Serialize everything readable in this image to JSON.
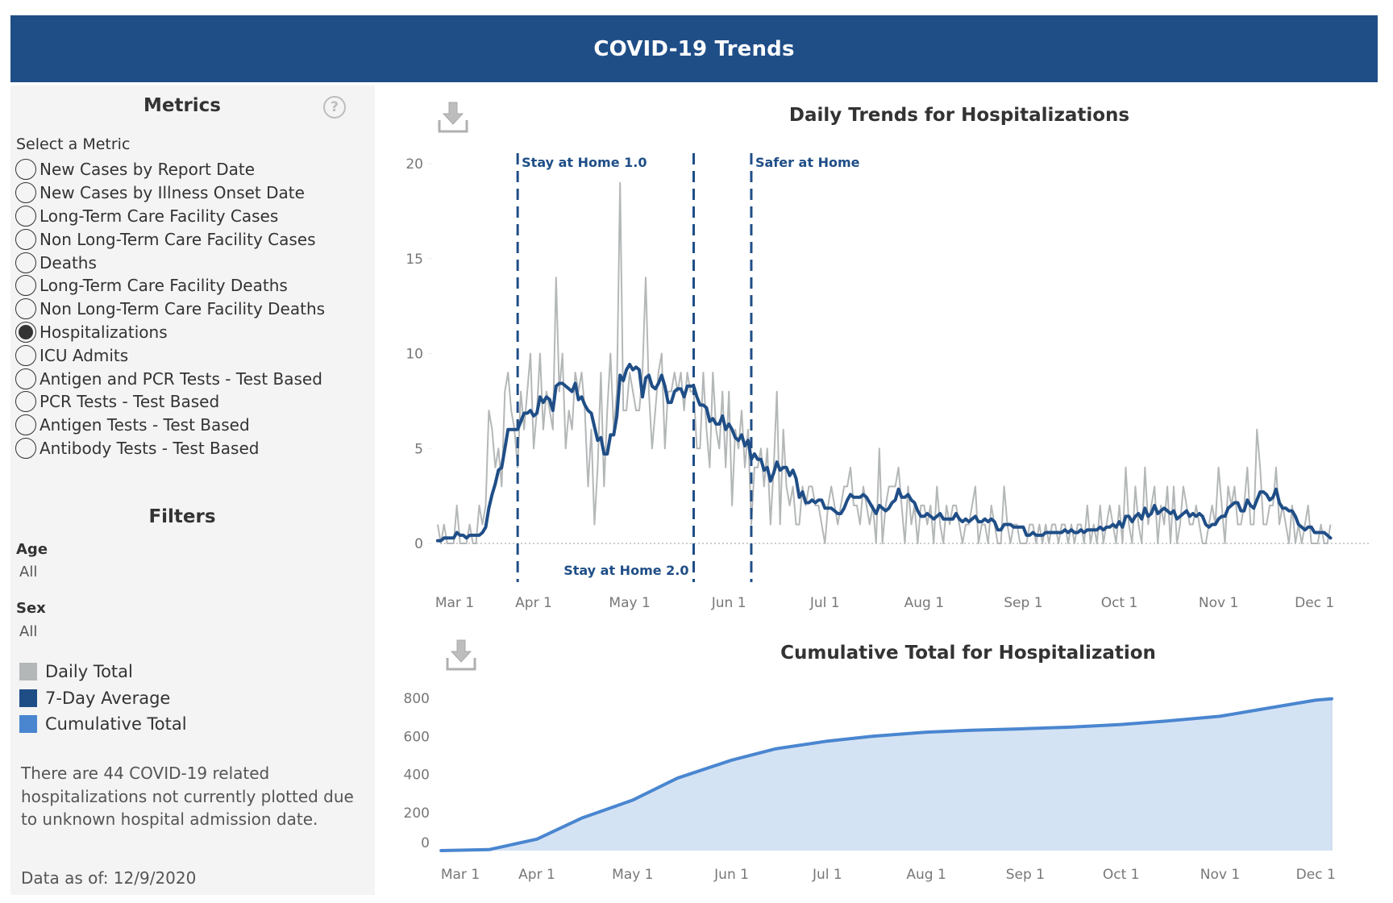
{
  "header": {
    "title": "COVID-19 Trends"
  },
  "sidebar": {
    "metrics_heading": "Metrics",
    "help_icon": "question-circle-icon",
    "select_label": "Select a Metric",
    "metrics": [
      {
        "label": "New Cases by Report Date",
        "selected": false
      },
      {
        "label": "New Cases by Illness Onset Date",
        "selected": false
      },
      {
        "label": "Long-Term Care Facility Cases",
        "selected": false
      },
      {
        "label": "Non Long-Term Care Facility Cases",
        "selected": false
      },
      {
        "label": "Deaths",
        "selected": false
      },
      {
        "label": "Long-Term Care Facility Deaths",
        "selected": false
      },
      {
        "label": "Non Long-Term Care Facility Deaths",
        "selected": false
      },
      {
        "label": "Hospitalizations",
        "selected": true
      },
      {
        "label": "ICU Admits",
        "selected": false
      },
      {
        "label": "Antigen and PCR Tests - Test Based",
        "selected": false
      },
      {
        "label": "PCR Tests - Test Based",
        "selected": false
      },
      {
        "label": "Antigen Tests - Test Based",
        "selected": false
      },
      {
        "label": "Antibody Tests - Test Based",
        "selected": false
      }
    ],
    "filters_heading": "Filters",
    "filters": [
      {
        "label": "Age",
        "value": "All"
      },
      {
        "label": "Sex",
        "value": "All"
      }
    ],
    "legend": [
      {
        "label": "Daily Total",
        "color": "#b4b7b8"
      },
      {
        "label": "7-Day Average",
        "color": "#1f4e87"
      },
      {
        "label": "Cumulative Total",
        "color": "#4a86d0"
      }
    ],
    "note": "There are 44 COVID-19 related hospitalizations not currently plotted due to unknown hospital admission date.",
    "data_as_of": "Data as of: 12/9/2020"
  },
  "colors": {
    "header": "#1f4e87",
    "daily": "#b4b7b8",
    "avg": "#1f4e87",
    "cumulative_line": "#4a86d0",
    "cumulative_fill": "#d4e3f4",
    "event_line": "#1f4e87"
  },
  "chart_data": [
    {
      "type": "line",
      "title": "Daily Trends for Hospitalizations",
      "download_icon": "download-icon",
      "xlabel": "",
      "ylabel": "",
      "ylim": [
        0,
        20
      ],
      "yticks": [
        0,
        5,
        10,
        15,
        20
      ],
      "xticks": [
        {
          "label": "Mar 1",
          "date": "2020-03-01"
        },
        {
          "label": "Apr 1",
          "date": "2020-04-01"
        },
        {
          "label": "May 1",
          "date": "2020-05-01"
        },
        {
          "label": "Jun 1",
          "date": "2020-06-01"
        },
        {
          "label": "Jul 1",
          "date": "2020-07-01"
        },
        {
          "label": "Aug 1",
          "date": "2020-08-01"
        },
        {
          "label": "Sep 1",
          "date": "2020-09-01"
        },
        {
          "label": "Oct 1",
          "date": "2020-10-01"
        },
        {
          "label": "Nov 1",
          "date": "2020-11-01"
        },
        {
          "label": "Dec 1",
          "date": "2020-12-01"
        }
      ],
      "start_date": "2020-03-02",
      "series": [
        {
          "name": "Daily Total",
          "values": [
            1,
            0,
            1,
            0,
            0,
            0,
            2,
            0,
            0,
            0,
            1,
            0,
            0,
            2,
            1,
            2,
            7,
            6,
            4,
            5,
            3,
            8,
            9,
            7,
            6,
            4,
            8,
            6,
            8,
            10,
            5,
            7,
            10,
            6,
            8,
            7,
            6,
            14,
            8,
            10,
            5,
            7,
            6,
            9,
            8,
            9,
            7,
            3,
            6,
            1,
            4,
            9,
            3,
            7,
            10,
            6,
            8,
            19,
            7,
            7,
            9,
            8,
            7,
            7,
            9,
            14,
            8,
            5,
            7,
            9,
            10,
            5,
            8,
            8,
            9,
            8,
            9,
            7,
            9,
            8,
            8,
            5,
            5,
            9,
            6,
            4,
            9,
            6,
            5,
            8,
            4,
            8,
            2,
            6,
            5,
            7,
            4,
            6,
            1,
            4,
            4,
            5,
            3,
            5,
            1,
            4,
            8,
            1,
            6,
            3,
            2,
            3,
            1,
            1,
            3,
            2,
            3,
            3,
            2,
            2,
            1,
            0,
            2,
            3,
            2,
            1,
            2,
            3,
            3,
            4,
            2,
            2,
            1,
            3,
            2,
            1,
            2,
            0,
            5,
            0,
            2,
            3,
            3,
            3,
            4,
            2,
            0,
            3,
            1,
            2,
            0,
            2,
            2,
            1,
            2,
            0,
            3,
            1,
            0,
            2,
            1,
            2,
            2,
            1,
            0,
            1,
            1,
            2,
            3,
            0,
            1,
            1,
            0,
            2,
            1,
            0,
            0,
            3,
            1,
            0,
            1,
            1,
            0,
            0,
            0,
            1,
            1,
            0,
            1,
            0,
            1,
            0,
            1,
            1,
            0,
            1,
            1,
            0,
            1,
            0,
            1,
            1,
            0,
            2,
            0,
            1,
            0,
            2,
            0,
            1,
            2,
            1,
            0,
            2,
            0,
            4,
            1,
            0,
            3,
            1,
            0,
            4,
            1,
            2,
            3,
            0,
            2,
            1,
            3,
            0,
            3,
            0,
            1,
            3,
            2,
            1,
            1,
            2,
            1,
            0,
            0,
            1,
            2,
            1,
            4,
            2,
            0,
            3,
            2,
            3,
            1,
            1,
            2,
            4,
            1,
            1,
            6,
            4,
            1,
            1,
            2,
            2,
            4,
            1,
            2,
            1,
            0,
            2,
            0,
            1,
            0,
            1,
            2,
            0,
            0,
            0,
            1,
            0,
            0,
            1
          ]
        },
        {
          "name": "7-Day Average",
          "derived_from": "Daily Total",
          "window": 7
        }
      ],
      "annotations": [
        {
          "label": "Stay at Home 1.0",
          "date": "2020-03-27",
          "label_position": "top-right"
        },
        {
          "label": "Stay at Home 2.0",
          "date": "2020-05-21",
          "label_position": "bottom-left"
        },
        {
          "label": "Safer at Home",
          "date": "2020-06-08",
          "label_position": "top-right"
        }
      ],
      "grid": false,
      "zero_line": "dotted"
    },
    {
      "type": "area",
      "title": "Cumulative Total for Hospitalization",
      "download_icon": "download-icon",
      "xlabel": "",
      "ylabel": "",
      "ylim": [
        0,
        800
      ],
      "yticks": [
        0,
        200,
        400,
        600,
        800
      ],
      "xticks": [
        {
          "label": "Mar 1",
          "date": "2020-03-01"
        },
        {
          "label": "Apr 1",
          "date": "2020-04-01"
        },
        {
          "label": "May 1",
          "date": "2020-05-01"
        },
        {
          "label": "Jun 1",
          "date": "2020-06-01"
        },
        {
          "label": "Jul 1",
          "date": "2020-07-01"
        },
        {
          "label": "Aug 1",
          "date": "2020-08-01"
        },
        {
          "label": "Sep 1",
          "date": "2020-09-01"
        },
        {
          "label": "Oct 1",
          "date": "2020-10-01"
        },
        {
          "label": "Nov 1",
          "date": "2020-11-01"
        },
        {
          "label": "Dec 1",
          "date": "2020-12-01"
        }
      ],
      "points": [
        {
          "date": "2020-03-02",
          "value": 0
        },
        {
          "date": "2020-03-17",
          "value": 5
        },
        {
          "date": "2020-04-01",
          "value": 60
        },
        {
          "date": "2020-04-15",
          "value": 170
        },
        {
          "date": "2020-05-01",
          "value": 265
        },
        {
          "date": "2020-05-15",
          "value": 380
        },
        {
          "date": "2020-06-01",
          "value": 475
        },
        {
          "date": "2020-06-15",
          "value": 535
        },
        {
          "date": "2020-07-01",
          "value": 575
        },
        {
          "date": "2020-07-15",
          "value": 600
        },
        {
          "date": "2020-08-01",
          "value": 622
        },
        {
          "date": "2020-08-15",
          "value": 632
        },
        {
          "date": "2020-09-01",
          "value": 640
        },
        {
          "date": "2020-09-15",
          "value": 648
        },
        {
          "date": "2020-10-01",
          "value": 662
        },
        {
          "date": "2020-10-15",
          "value": 680
        },
        {
          "date": "2020-11-01",
          "value": 705
        },
        {
          "date": "2020-11-15",
          "value": 745
        },
        {
          "date": "2020-12-01",
          "value": 790
        },
        {
          "date": "2020-12-06",
          "value": 797
        }
      ],
      "grid": false
    }
  ]
}
